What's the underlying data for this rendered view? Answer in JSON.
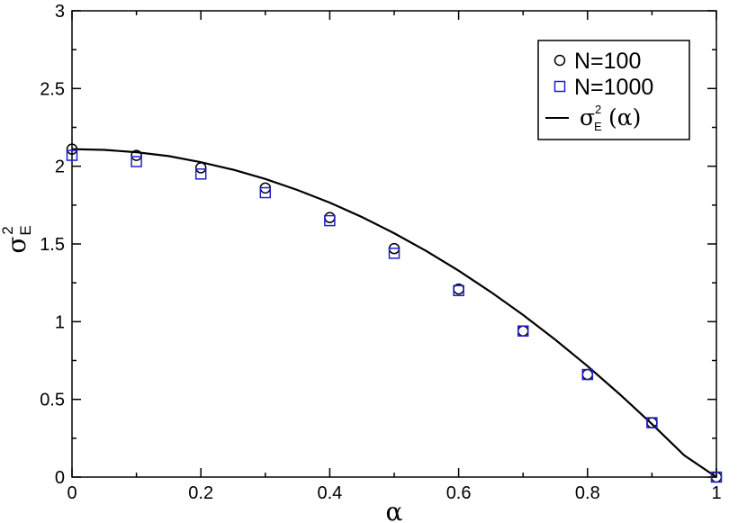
{
  "chart_data": {
    "type": "scatter",
    "title": "",
    "xlabel": "α",
    "ylabel": {
      "base": "σ",
      "sup": "2",
      "sub": "E"
    },
    "xlim": [
      0,
      1
    ],
    "ylim": [
      0,
      3
    ],
    "x_ticks": [
      0,
      0.2,
      0.4,
      0.6,
      0.8,
      1
    ],
    "x_tick_labels": [
      "0",
      "0.2",
      "0.4",
      "0.6",
      "0.8",
      "1"
    ],
    "y_ticks": [
      0,
      0.5,
      1,
      1.5,
      2,
      2.5,
      3
    ],
    "y_tick_labels": [
      "0",
      "0.5",
      "1",
      "1.5",
      "2",
      "2.5",
      "3"
    ],
    "grid": false,
    "legend_position": "top-right",
    "series": [
      {
        "name": "N=100",
        "marker": "circle",
        "color": "#000000",
        "x": [
          0,
          0.1,
          0.2,
          0.3,
          0.4,
          0.5,
          0.6,
          0.7,
          0.8,
          0.9,
          1.0
        ],
        "y": [
          2.11,
          2.07,
          1.99,
          1.86,
          1.67,
          1.47,
          1.21,
          0.94,
          0.66,
          0.35,
          0.0
        ]
      },
      {
        "name": "N=1000",
        "marker": "square",
        "color": "#1f1fd0",
        "x": [
          0,
          0.1,
          0.2,
          0.3,
          0.4,
          0.5,
          0.6,
          0.7,
          0.8,
          0.9,
          1.0
        ],
        "y": [
          2.07,
          2.03,
          1.95,
          1.83,
          1.65,
          1.44,
          1.2,
          0.94,
          0.66,
          0.35,
          0.0
        ]
      },
      {
        "name": {
          "base": "σ",
          "sup": "2",
          "sub": "E",
          "suffix": "(α)"
        },
        "type": "line",
        "color": "#000000",
        "x": [
          0,
          0.05,
          0.1,
          0.15,
          0.2,
          0.25,
          0.3,
          0.35,
          0.4,
          0.45,
          0.5,
          0.55,
          0.6,
          0.65,
          0.7,
          0.75,
          0.8,
          0.85,
          0.9,
          0.95,
          1.0
        ],
        "y": [
          2.11,
          2.105,
          2.09,
          2.065,
          2.026,
          1.978,
          1.918,
          1.847,
          1.766,
          1.673,
          1.569,
          1.454,
          1.328,
          1.191,
          1.043,
          0.884,
          0.714,
          0.533,
          0.341,
          0.14,
          0.0
        ]
      }
    ]
  }
}
